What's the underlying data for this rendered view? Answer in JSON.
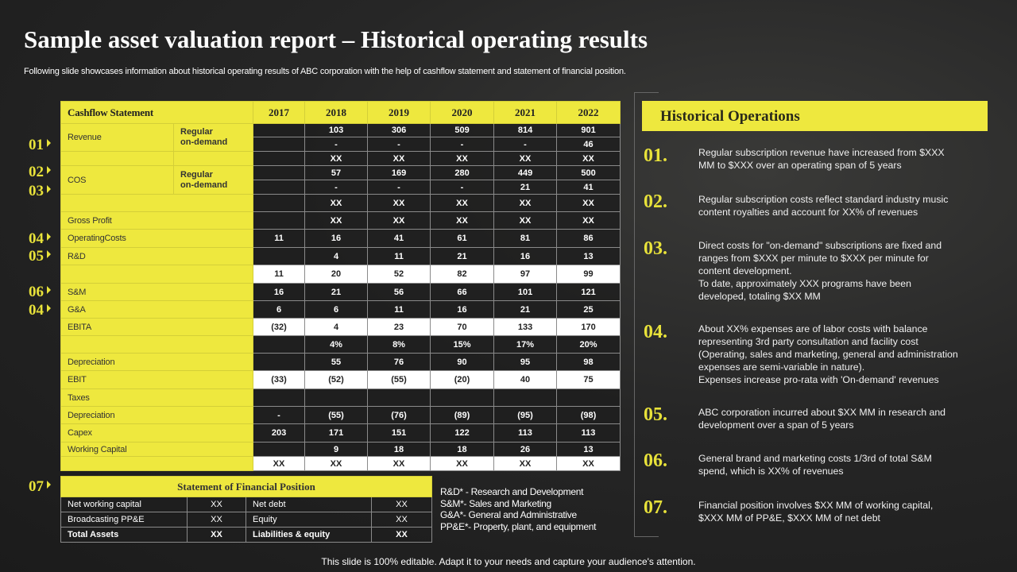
{
  "title": "Sample asset valuation report – Historical operating results",
  "subtitle": "Following slide showcases information about historical operating results of ABC corporation with the help of cashflow statement and statement of financial position.",
  "markers": [
    "01",
    "02",
    "03",
    "04",
    "05",
    "06",
    "04",
    "07"
  ],
  "cashflow": {
    "header": "Cashflow  Statement",
    "years": [
      "2017",
      "2018",
      "2019",
      "2020",
      "2021",
      "2022"
    ],
    "rows": [
      {
        "label": "Revenue",
        "sub": "Regular\non-demand",
        "style": "dark",
        "values": [
          "",
          "103",
          "306",
          "509",
          "814",
          "901"
        ]
      },
      {
        "style": "dark",
        "values": [
          "",
          "-",
          "-",
          "-",
          "-",
          "46"
        ]
      },
      {
        "label": "",
        "sub": "",
        "style": "dark",
        "values": [
          "",
          "XX",
          "XX",
          "XX",
          "XX",
          "XX"
        ]
      },
      {
        "label": "COS",
        "sub": "Regular\non-demand",
        "style": "dark",
        "values": [
          "",
          "57",
          "169",
          "280",
          "449",
          "500"
        ]
      },
      {
        "style": "dark",
        "values": [
          "",
          "-",
          "-",
          "-",
          "21",
          "41"
        ]
      },
      {
        "label": "",
        "style": "dark",
        "values": [
          "",
          "XX",
          "XX",
          "XX",
          "XX",
          "XX"
        ]
      },
      {
        "label": "Gross Profit",
        "style": "dark",
        "values": [
          "",
          "XX",
          "XX",
          "XX",
          "XX",
          "XX"
        ]
      },
      {
        "label": "OperatingCosts",
        "style": "dark",
        "values": [
          "11",
          "16",
          "41",
          "61",
          "81",
          "86"
        ]
      },
      {
        "label": "R&D",
        "style": "dark",
        "values": [
          "",
          "4",
          "11",
          "21",
          "16",
          "13"
        ]
      },
      {
        "label": "",
        "style": "white",
        "values": [
          "11",
          "20",
          "52",
          "82",
          "97",
          "99"
        ]
      },
      {
        "label": "S&M",
        "style": "dark",
        "values": [
          "16",
          "21",
          "56",
          "66",
          "101",
          "121"
        ]
      },
      {
        "label": "G&A",
        "style": "dark",
        "values": [
          "6",
          "6",
          "11",
          "16",
          "21",
          "25"
        ]
      },
      {
        "label": "EBITA",
        "style": "white",
        "values": [
          "(32)",
          "4",
          "23",
          "70",
          "133",
          "170"
        ]
      },
      {
        "label": "",
        "style": "dark",
        "values": [
          "",
          "4%",
          "8%",
          "15%",
          "17%",
          "20%"
        ]
      },
      {
        "label": "Depreciation",
        "style": "dark",
        "values": [
          "",
          "55",
          "76",
          "90",
          "95",
          "98"
        ]
      },
      {
        "label": "EBIT",
        "style": "white",
        "values": [
          "(33)",
          "(52)",
          "(55)",
          "(20)",
          "40",
          "75"
        ]
      },
      {
        "label": "Taxes",
        "style": "dark",
        "values": [
          "",
          "",
          "",
          "",
          "",
          ""
        ]
      },
      {
        "label": "Depreciation",
        "style": "dark",
        "values": [
          "-",
          "(55)",
          "(76)",
          "(89)",
          "(95)",
          "(98)"
        ]
      },
      {
        "label": "Capex",
        "style": "dark",
        "values": [
          "203",
          "171",
          "151",
          "122",
          "113",
          "113"
        ]
      },
      {
        "label": "Working Capital",
        "style": "dark",
        "values": [
          "",
          "9",
          "18",
          "18",
          "26",
          "13"
        ]
      },
      {
        "label": "",
        "style": "white",
        "values": [
          "XX",
          "XX",
          "XX",
          "XX",
          "XX",
          "XX"
        ]
      }
    ]
  },
  "financial_position": {
    "header": "Statement  of Financial Position",
    "rows": [
      [
        "Net  working capital",
        "XX",
        "Net debt",
        "XX"
      ],
      [
        "Broadcasting PP&E",
        "XX",
        "Equity",
        "XX"
      ],
      [
        "Total Assets",
        "XX",
        "Liabilities & equity",
        "XX"
      ]
    ]
  },
  "legend": [
    "R&D* - Research and Development",
    "S&M*- Sales and Marketing",
    "G&A*- General and Administrative",
    "PP&E*- Property, plant, and equipment"
  ],
  "operations": {
    "title": "Historical  Operations",
    "items": [
      {
        "num": "01.",
        "text": "Regular  subscription  revenue  have  increased  from  $XXX\nMM to $XXX  over  an operating  span of 5 years"
      },
      {
        "num": "02.",
        "text": "Regular  subscription  costs reflect standard  industry music\ncontent royalties and  account for XX%  of revenues"
      },
      {
        "num": "03.",
        "text": "Direct costs for \"on-demand\"  subscriptions are fixed and\nranges  from $XXX  per minute to $XXX  per minute for\ncontent development.\nTo date, approximately XXX  programs  have  been\ndeveloped,  totaling $XX  MM"
      },
      {
        "num": "04.",
        "text": "About XX%  expenses are of labor costs with balance\nrepresenting 3rd party consultation and facility cost\n(Operating,  sales and marketing, general and administration\nexpenses are semi-variable  in nature).\nExpenses increase pro-rata with 'On-demand'  revenues"
      },
      {
        "num": "05.",
        "text": "ABC corporation  incurred  about $XX  MM in research and\ndevelopment  over  a span of 5 years"
      },
      {
        "num": "06.",
        "text": "General brand and marketing costs 1/3rd of total S&M\nspend, which is XX%  of revenues"
      },
      {
        "num": "07.",
        "text": "Financial position involves  $XX  MM of working capital,\n$XXX  MM of PP&E, $XXX  MM of net debt"
      }
    ]
  },
  "footer": "This slide is 100% editable. Adapt it to your needs and capture your audience's attention."
}
